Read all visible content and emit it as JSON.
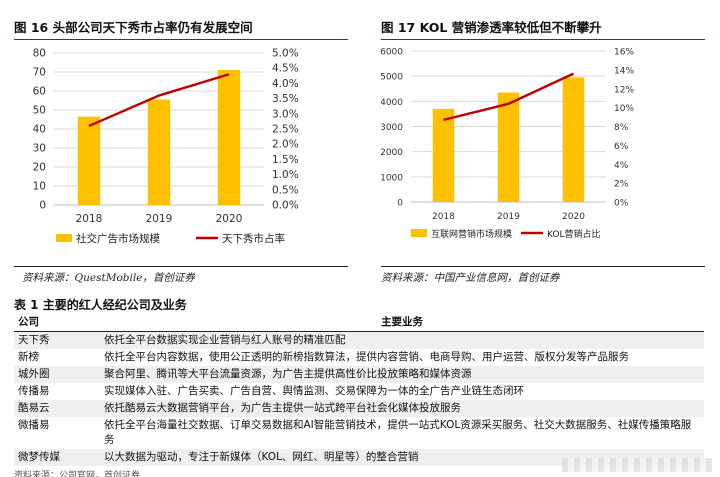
{
  "figures": {
    "left": {
      "title": "图 16 头部公司天下秀市占率仍有发展空间",
      "source": "资料来源：QuestMobile，首创证券"
    },
    "right": {
      "title": "图 17 KOL 营销渗透率较低但不断攀升",
      "source": "资料来源：中国产业信息网，首创证券"
    }
  },
  "chart_data": [
    {
      "type": "bar",
      "categories": [
        "2018",
        "2019",
        "2020"
      ],
      "series": [
        {
          "name": "社交广告市场规模",
          "kind": "bar",
          "axis": "left",
          "values": [
            46.5,
            55.5,
            71
          ]
        },
        {
          "name": "天下秀市占率",
          "kind": "line",
          "axis": "right",
          "values": [
            2.6,
            3.6,
            4.3
          ]
        }
      ],
      "y_left": {
        "min": 0,
        "max": 80,
        "ticks": [
          "0",
          "10",
          "20",
          "30",
          "40",
          "50",
          "60",
          "70",
          "80"
        ]
      },
      "y_right": {
        "min": 0,
        "max": 5,
        "ticks": [
          "0.0%",
          "0.5%",
          "1.0%",
          "1.5%",
          "2.0%",
          "2.5%",
          "3.0%",
          "3.5%",
          "4.0%",
          "4.5%",
          "5.0%"
        ]
      },
      "legend_position": "bottom",
      "colors": {
        "bar": "#FFC000",
        "line": "#C00000"
      }
    },
    {
      "type": "bar",
      "categories": [
        "2018",
        "2019",
        "2020"
      ],
      "series": [
        {
          "name": "互联网营销市场规模",
          "kind": "bar",
          "axis": "left",
          "values": [
            3700,
            4350,
            4950
          ]
        },
        {
          "name": "KOL营销占比",
          "kind": "line",
          "axis": "right",
          "values": [
            8.7,
            10.4,
            13.6
          ]
        }
      ],
      "y_left": {
        "min": 0,
        "max": 6000,
        "ticks": [
          "0",
          "1000",
          "2000",
          "3000",
          "4000",
          "5000",
          "6000"
        ]
      },
      "y_right": {
        "min": 0,
        "max": 16,
        "ticks": [
          "0%",
          "2%",
          "4%",
          "6%",
          "8%",
          "10%",
          "12%",
          "14%",
          "16%"
        ]
      },
      "legend_position": "bottom",
      "colors": {
        "bar": "#FFC000",
        "line": "#C00000"
      }
    }
  ],
  "table": {
    "title": "表 1 主要的红人经纪公司及业务",
    "headers": [
      "公司",
      "主要业务"
    ],
    "rows": [
      {
        "company": "天下秀",
        "business": "依托全平台数据实现企业营销与红人账号的精准匹配"
      },
      {
        "company": "新榜",
        "business": "依托全平台内容数据，使用公正透明的新榜指数算法，提供内容营销、电商导购、用户运营、版权分发等产品服务"
      },
      {
        "company": "城外圈",
        "business": "聚合阿里、腾讯等大平台流量资源，为广告主提供高性价比投放策略和媒体资源"
      },
      {
        "company": "传播易",
        "business": "实现媒体入驻、广告买卖、广告自营、舆情监测、交易保障为一体的全广告产业链生态闭环"
      },
      {
        "company": "酷易云",
        "business": "依托酷易云大数据营销平台，为广告主提供一站式跨平台社会化媒体投放服务"
      },
      {
        "company": "微播易",
        "business": "依托全平台海量社交数据、订单交易数据和AI智能营销技术，提供一站式KOL资源采买服务、社交大数据服务、社媒传播策略服务"
      },
      {
        "company": "微梦传媒",
        "business": "以大数据为驱动，专注于新媒体（KOL、网红、明星等）的整合营销"
      }
    ],
    "cut_text": "资料来源：公司官网，首创证券"
  }
}
